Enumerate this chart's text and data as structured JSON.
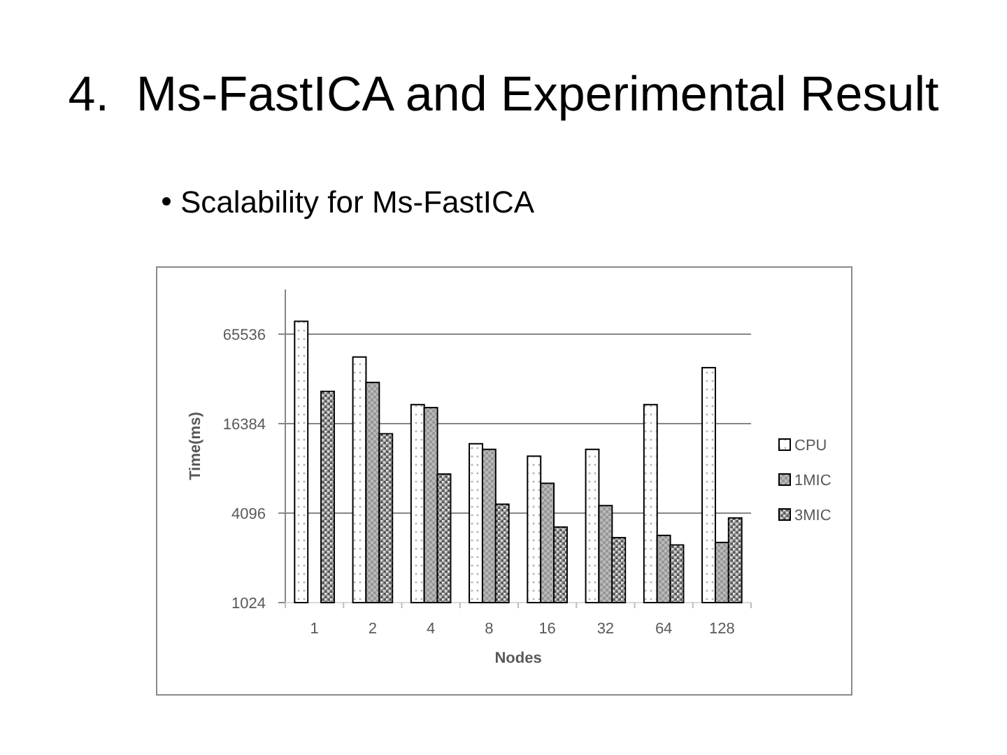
{
  "chart_data": {
    "type": "bar",
    "title": "4.  Ms-FastICA and Experimental Result",
    "subtitle": "Scalability for Ms-FastICA",
    "xlabel": "Nodes",
    "ylabel": "Time(ms)",
    "categories": [
      "1",
      "2",
      "4",
      "8",
      "16",
      "32",
      "64",
      "128"
    ],
    "series": [
      {
        "name": "CPU",
        "color": "#ffffff",
        "values": [
          80000,
          46000,
          22000,
          12000,
          9900,
          11000,
          22000,
          39000
        ]
      },
      {
        "name": "1MIC",
        "color": "#bfbfbf",
        "values": [
          null,
          31000,
          21000,
          11000,
          6500,
          4600,
          2900,
          2600
        ]
      },
      {
        "name": "3MIC",
        "color": "#595959",
        "values": [
          27000,
          14000,
          7500,
          4700,
          3300,
          2800,
          2500,
          3800
        ]
      }
    ],
    "ylim": [
      1024,
      131072
    ],
    "yticks": [
      1024,
      4096,
      16384,
      65536
    ],
    "log": "y",
    "grid": "y",
    "legend": "right"
  }
}
